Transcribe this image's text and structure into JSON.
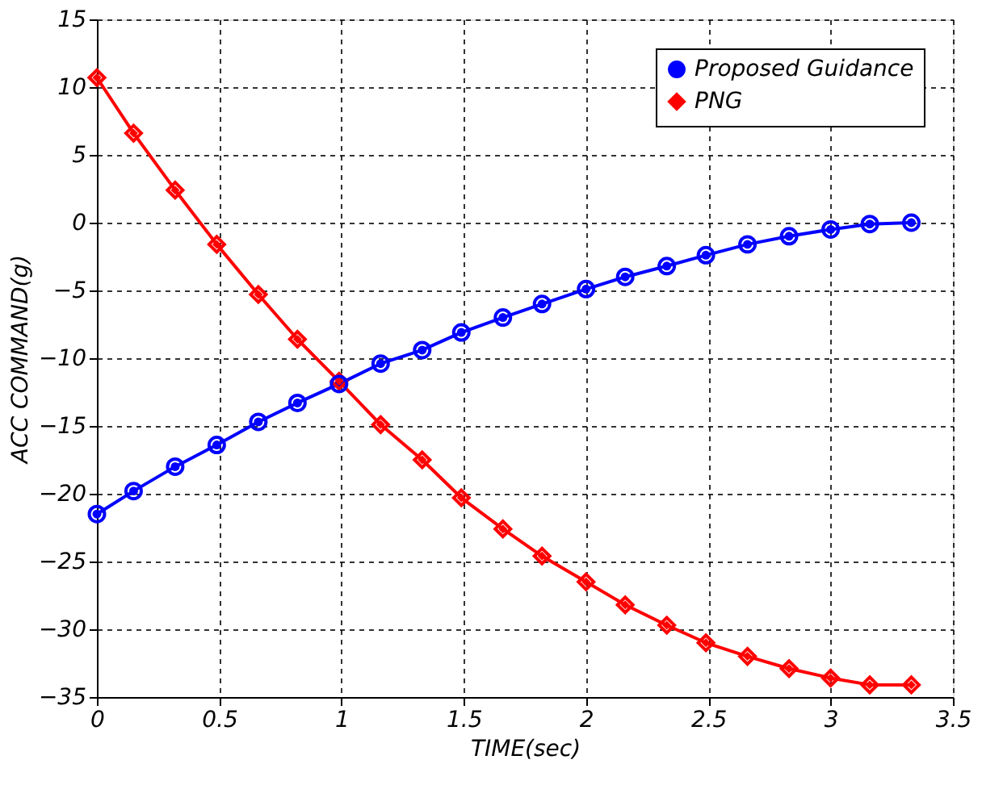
{
  "chart_data": {
    "type": "line",
    "xlabel": "TIME(sec)",
    "ylabel": "ACC COMMAND(g)",
    "xlim": [
      0,
      3.5
    ],
    "xticks": [
      0,
      0.5,
      1,
      1.5,
      2,
      2.5,
      3,
      3.5
    ],
    "ylim": [
      -35,
      15
    ],
    "yticks": [
      -35,
      -30,
      -25,
      -20,
      -15,
      -10,
      -5,
      0,
      5,
      10,
      15
    ],
    "grid": true,
    "legend": "top right",
    "line_style": "solid",
    "series": [
      {
        "name": "Proposed Guidance",
        "color": "#0000ff",
        "marker": "circle",
        "x": [
          0,
          0.15,
          0.32,
          0.49,
          0.66,
          0.82,
          0.99,
          1.16,
          1.33,
          1.49,
          1.66,
          1.82,
          2.0,
          2.16,
          2.33,
          2.49,
          2.66,
          2.83,
          3.0,
          3.16,
          3.33
        ],
        "values": [
          -21.5,
          -19.8,
          -18.0,
          -16.4,
          -14.7,
          -13.3,
          -11.9,
          -10.4,
          -9.4,
          -8.1,
          -7.0,
          -6.0,
          -4.9,
          -4.0,
          -3.2,
          -2.4,
          -1.6,
          -1.0,
          -0.5,
          -0.1,
          0.0
        ]
      },
      {
        "name": "PNG",
        "color": "#ff0000",
        "marker": "diamond",
        "x": [
          0,
          0.15,
          0.32,
          0.49,
          0.66,
          0.82,
          0.99,
          1.16,
          1.33,
          1.49,
          1.66,
          1.82,
          2.0,
          2.16,
          2.33,
          2.49,
          2.66,
          2.83,
          3.0,
          3.16,
          3.33
        ],
        "values": [
          10.7,
          6.6,
          2.4,
          -1.6,
          -5.3,
          -8.6,
          -11.7,
          -14.9,
          -17.5,
          -20.3,
          -22.6,
          -24.6,
          -26.5,
          -28.2,
          -29.7,
          -31.0,
          -32.0,
          -32.9,
          -33.6,
          -34.1,
          -34.1
        ]
      }
    ]
  }
}
